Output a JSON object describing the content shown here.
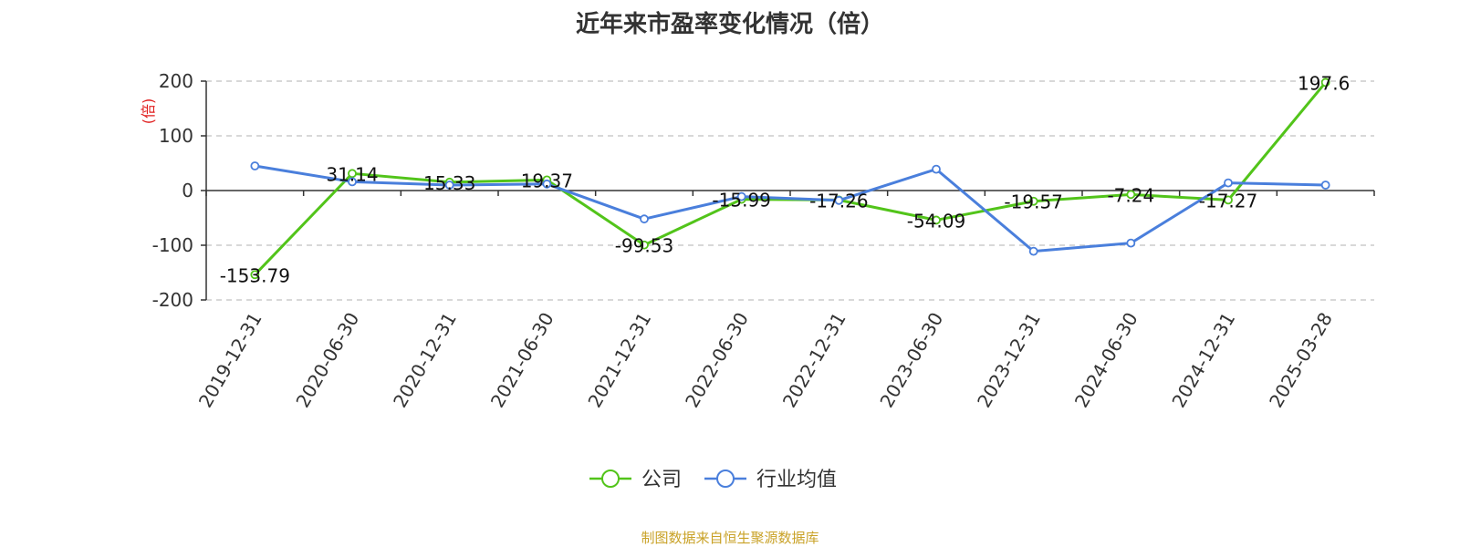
{
  "chart_title": "近年来市盈率变化情况（倍）",
  "source_note": "制图数据来自恒生聚源数据库",
  "colors": {
    "company": "#52c41a",
    "industry": "#4a7fdc",
    "ylabel": "#e01e1e",
    "source": "#c9a227"
  },
  "chart_data": {
    "type": "line",
    "title": "近年来市盈率变化情况（倍）",
    "ylabel": "(倍)",
    "xlabel": "",
    "ylim": [
      -200,
      200
    ],
    "yticks": [
      200,
      100,
      0,
      -100,
      -200
    ],
    "grid": true,
    "legend_position": "bottom-center",
    "categories": [
      "2019-12-31",
      "2020-06-30",
      "2020-12-31",
      "2021-06-30",
      "2021-12-31",
      "2022-06-30",
      "2022-12-31",
      "2023-06-30",
      "2023-12-31",
      "2024-06-30",
      "2024-12-31",
      "2025-03-28"
    ],
    "series": [
      {
        "name": "公司",
        "values": [
          -153.79,
          31.14,
          15.33,
          19.37,
          -99.53,
          -15.99,
          -17.26,
          -54.09,
          -19.57,
          -7.24,
          -17.27,
          197.6
        ],
        "labels": [
          "-153.79",
          "31.14",
          "15.33",
          "19.37",
          "-99.53",
          "-15.99",
          "-17.26",
          "-54.09",
          "-19.57",
          "-7.24",
          "-17.27",
          "197.6"
        ]
      },
      {
        "name": "行业均值",
        "values": [
          45,
          16,
          10,
          12,
          -52,
          -11,
          -18,
          39,
          -111,
          -96,
          14,
          10
        ]
      }
    ]
  }
}
